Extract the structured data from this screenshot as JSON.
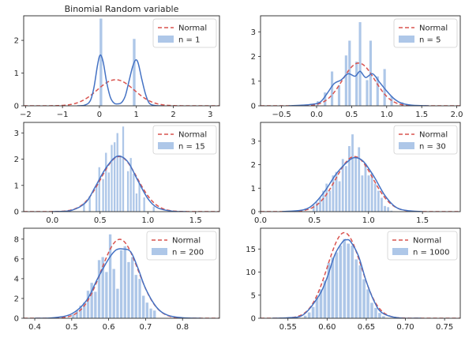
{
  "colors": {
    "hist": "#aec7e8",
    "kde": "#4472c4",
    "normal": "#d9534f",
    "axis": "#262626"
  },
  "chart_data": [
    {
      "type": "bar",
      "title": "Binomial Random variable",
      "legend": {
        "position": "top-right",
        "normal_label": "Normal",
        "hist_label": "n = 1"
      },
      "xlim": [
        -2.05,
        3.25
      ],
      "ylim": [
        0,
        2.75
      ],
      "xticks": [
        -2,
        -1,
        0,
        1,
        2,
        3
      ],
      "yticks": [
        0,
        1,
        2
      ],
      "xticklabels": [
        "−2",
        "−1",
        "0",
        "1",
        "2",
        "3"
      ],
      "yticklabels": [
        "0",
        "1",
        "2"
      ],
      "bins": [
        [
          0.0,
          0.1,
          2.67
        ],
        [
          0.9,
          1.0,
          2.05
        ]
      ],
      "normal": {
        "mu": 0.44,
        "sigma": 0.5
      },
      "kde": [
        [
          -0.6,
          0.0
        ],
        [
          -0.4,
          0.02
        ],
        [
          -0.25,
          0.15
        ],
        [
          -0.15,
          0.55
        ],
        [
          -0.05,
          1.25
        ],
        [
          0.02,
          1.55
        ],
        [
          0.1,
          1.35
        ],
        [
          0.2,
          0.7
        ],
        [
          0.3,
          0.25
        ],
        [
          0.4,
          0.08
        ],
        [
          0.5,
          0.06
        ],
        [
          0.6,
          0.1
        ],
        [
          0.7,
          0.3
        ],
        [
          0.8,
          0.75
        ],
        [
          0.9,
          1.2
        ],
        [
          0.98,
          1.4
        ],
        [
          1.05,
          1.3
        ],
        [
          1.15,
          0.8
        ],
        [
          1.25,
          0.35
        ],
        [
          1.35,
          0.08
        ],
        [
          1.5,
          0.01
        ],
        [
          1.7,
          0.0
        ]
      ]
    },
    {
      "type": "bar",
      "title": "",
      "legend": {
        "position": "top-right",
        "normal_label": "Normal",
        "hist_label": "n = 5"
      },
      "xlim": [
        -0.8,
        2.05
      ],
      "ylim": [
        0,
        3.65
      ],
      "xticks": [
        -0.5,
        0.0,
        0.5,
        1.0,
        1.5,
        2.0
      ],
      "yticks": [
        0,
        1,
        2,
        3
      ],
      "xticklabels": [
        "−0.5",
        "0.0",
        "0.5",
        "1.0",
        "1.5",
        "2.0"
      ],
      "yticklabels": [
        "0",
        "1",
        "2",
        "3"
      ],
      "bins": [
        [
          0.0,
          0.04,
          0.2
        ],
        [
          0.1,
          0.15,
          0.55
        ],
        [
          0.2,
          0.25,
          1.4
        ],
        [
          0.3,
          0.35,
          0.85
        ],
        [
          0.4,
          0.45,
          2.05
        ],
        [
          0.45,
          0.5,
          2.65
        ],
        [
          0.55,
          0.6,
          1.8
        ],
        [
          0.6,
          0.65,
          3.4
        ],
        [
          0.7,
          0.75,
          1.05
        ],
        [
          0.75,
          0.8,
          2.65
        ],
        [
          0.85,
          0.9,
          1.2
        ],
        [
          0.95,
          1.0,
          1.5
        ],
        [
          1.05,
          1.1,
          0.4
        ],
        [
          1.2,
          1.25,
          0.15
        ]
      ],
      "normal": {
        "mu": 0.6,
        "sigma": 0.23
      },
      "kde": [
        [
          -0.4,
          0.0
        ],
        [
          -0.1,
          0.05
        ],
        [
          0.05,
          0.15
        ],
        [
          0.15,
          0.5
        ],
        [
          0.25,
          0.9
        ],
        [
          0.35,
          1.05
        ],
        [
          0.45,
          1.3
        ],
        [
          0.55,
          1.2
        ],
        [
          0.62,
          1.4
        ],
        [
          0.7,
          1.15
        ],
        [
          0.8,
          1.3
        ],
        [
          0.9,
          0.95
        ],
        [
          1.0,
          0.6
        ],
        [
          1.1,
          0.3
        ],
        [
          1.2,
          0.12
        ],
        [
          1.35,
          0.03
        ],
        [
          1.6,
          0.0
        ]
      ]
    },
    {
      "type": "bar",
      "title": "",
      "legend": {
        "position": "top-right",
        "normal_label": "Normal",
        "hist_label": "n = 15"
      },
      "xlim": [
        -0.3,
        1.75
      ],
      "ylim": [
        0,
        3.4
      ],
      "xticks": [
        0.0,
        0.5,
        1.0,
        1.5
      ],
      "yticks": [
        0,
        1,
        2,
        3
      ],
      "xticklabels": [
        "0.0",
        "0.5",
        "1.0",
        "1.5"
      ],
      "yticklabels": [
        "0",
        "1",
        "2",
        "3"
      ],
      "bins": [
        [
          0.32,
          0.35,
          0.35
        ],
        [
          0.38,
          0.41,
          0.6
        ],
        [
          0.45,
          0.48,
          1.0
        ],
        [
          0.48,
          0.51,
          1.7
        ],
        [
          0.52,
          0.55,
          1.25
        ],
        [
          0.55,
          0.58,
          2.25
        ],
        [
          0.58,
          0.61,
          1.5
        ],
        [
          0.61,
          0.64,
          2.55
        ],
        [
          0.64,
          0.67,
          2.65
        ],
        [
          0.67,
          0.7,
          3.0
        ],
        [
          0.7,
          0.73,
          2.15
        ],
        [
          0.73,
          0.76,
          3.25
        ],
        [
          0.78,
          0.81,
          1.55
        ],
        [
          0.81,
          0.84,
          2.05
        ],
        [
          0.84,
          0.87,
          1.45
        ],
        [
          0.87,
          0.9,
          0.7
        ],
        [
          0.9,
          0.93,
          1.1
        ],
        [
          0.95,
          0.98,
          0.55
        ],
        [
          1.05,
          1.08,
          0.2
        ]
      ],
      "normal": {
        "mu": 0.7,
        "sigma": 0.19
      },
      "kde": [
        [
          0.0,
          0.0
        ],
        [
          0.2,
          0.05
        ],
        [
          0.35,
          0.35
        ],
        [
          0.45,
          0.95
        ],
        [
          0.55,
          1.6
        ],
        [
          0.65,
          2.05
        ],
        [
          0.72,
          2.1
        ],
        [
          0.8,
          1.85
        ],
        [
          0.9,
          1.15
        ],
        [
          1.0,
          0.5
        ],
        [
          1.1,
          0.15
        ],
        [
          1.25,
          0.02
        ],
        [
          1.4,
          0.0
        ]
      ]
    },
    {
      "type": "bar",
      "title": "",
      "legend": {
        "position": "top-right",
        "normal_label": "Normal",
        "hist_label": "n = 30"
      },
      "xlim": [
        0.0,
        1.85
      ],
      "ylim": [
        0,
        3.8
      ],
      "xticks": [
        0.0,
        0.5,
        1.0,
        1.5
      ],
      "yticks": [
        0,
        1,
        2,
        3
      ],
      "xticklabels": [
        "0.0",
        "0.5",
        "1.0",
        "1.5"
      ],
      "yticklabels": [
        "0",
        "1",
        "2",
        "3"
      ],
      "bins": [
        [
          0.48,
          0.51,
          0.3
        ],
        [
          0.51,
          0.54,
          0.4
        ],
        [
          0.54,
          0.57,
          0.6
        ],
        [
          0.57,
          0.6,
          0.9
        ],
        [
          0.6,
          0.63,
          1.2
        ],
        [
          0.63,
          0.66,
          0.9
        ],
        [
          0.66,
          0.69,
          1.55
        ],
        [
          0.69,
          0.72,
          1.7
        ],
        [
          0.72,
          0.75,
          1.3
        ],
        [
          0.75,
          0.78,
          2.25
        ],
        [
          0.78,
          0.81,
          1.95
        ],
        [
          0.81,
          0.84,
          2.8
        ],
        [
          0.84,
          0.87,
          3.3
        ],
        [
          0.87,
          0.9,
          2.3
        ],
        [
          0.9,
          0.93,
          2.75
        ],
        [
          0.93,
          0.96,
          1.55
        ],
        [
          0.96,
          0.99,
          2.05
        ],
        [
          0.99,
          1.02,
          1.55
        ],
        [
          1.02,
          1.05,
          1.65
        ],
        [
          1.05,
          1.08,
          1.2
        ],
        [
          1.08,
          1.11,
          0.9
        ],
        [
          1.11,
          1.14,
          0.6
        ],
        [
          1.14,
          1.17,
          0.25
        ],
        [
          1.17,
          1.2,
          0.2
        ],
        [
          1.2,
          1.23,
          0.05
        ]
      ],
      "normal": {
        "mu": 0.87,
        "sigma": 0.17
      },
      "kde": [
        [
          0.2,
          0.0
        ],
        [
          0.4,
          0.08
        ],
        [
          0.5,
          0.35
        ],
        [
          0.6,
          0.9
        ],
        [
          0.7,
          1.6
        ],
        [
          0.8,
          2.1
        ],
        [
          0.87,
          2.3
        ],
        [
          0.95,
          2.15
        ],
        [
          1.05,
          1.5
        ],
        [
          1.15,
          0.7
        ],
        [
          1.25,
          0.2
        ],
        [
          1.35,
          0.05
        ],
        [
          1.5,
          0.0
        ]
      ]
    },
    {
      "type": "bar",
      "title": "",
      "legend": {
        "position": "top-right",
        "normal_label": "Normal",
        "hist_label": "n = 200"
      },
      "xlim": [
        0.37,
        0.9
      ],
      "ylim": [
        0,
        9.1
      ],
      "xticks": [
        0.4,
        0.5,
        0.6,
        0.7,
        0.8
      ],
      "yticks": [
        0,
        2,
        4,
        6,
        8
      ],
      "xticklabels": [
        "0.4",
        "0.5",
        "0.6",
        "0.7",
        "0.8"
      ],
      "yticklabels": [
        "0",
        "2",
        "4",
        "6",
        "8"
      ],
      "bins": [
        [
          0.5,
          0.51,
          0.4
        ],
        [
          0.51,
          0.52,
          0.8
        ],
        [
          0.52,
          0.53,
          1.3
        ],
        [
          0.53,
          0.54,
          1.6
        ],
        [
          0.54,
          0.55,
          2.8
        ],
        [
          0.55,
          0.56,
          3.6
        ],
        [
          0.56,
          0.57,
          2.7
        ],
        [
          0.57,
          0.58,
          5.9
        ],
        [
          0.58,
          0.59,
          6.2
        ],
        [
          0.59,
          0.6,
          4.7
        ],
        [
          0.6,
          0.61,
          8.5
        ],
        [
          0.61,
          0.62,
          5.0
        ],
        [
          0.62,
          0.63,
          3.0
        ],
        [
          0.63,
          0.64,
          6.9
        ],
        [
          0.64,
          0.65,
          7.3
        ],
        [
          0.65,
          0.66,
          5.7
        ],
        [
          0.66,
          0.67,
          6.2
        ],
        [
          0.67,
          0.68,
          4.4
        ],
        [
          0.68,
          0.69,
          4.0
        ],
        [
          0.69,
          0.7,
          2.3
        ],
        [
          0.7,
          0.71,
          1.6
        ],
        [
          0.71,
          0.72,
          1.0
        ],
        [
          0.72,
          0.73,
          0.8
        ]
      ],
      "normal": {
        "mu": 0.63,
        "sigma": 0.05
      },
      "kde": [
        [
          0.4,
          0.0
        ],
        [
          0.45,
          0.05
        ],
        [
          0.5,
          0.45
        ],
        [
          0.54,
          1.8
        ],
        [
          0.57,
          4.0
        ],
        [
          0.6,
          6.0
        ],
        [
          0.62,
          6.9
        ],
        [
          0.64,
          7.0
        ],
        [
          0.66,
          6.7
        ],
        [
          0.68,
          5.0
        ],
        [
          0.7,
          3.0
        ],
        [
          0.73,
          1.1
        ],
        [
          0.76,
          0.3
        ],
        [
          0.8,
          0.05
        ],
        [
          0.85,
          0.0
        ]
      ]
    },
    {
      "type": "bar",
      "title": "",
      "legend": {
        "position": "top-right",
        "normal_label": "Normal",
        "hist_label": "n = 1000"
      },
      "xlim": [
        0.515,
        0.77
      ],
      "ylim": [
        0,
        19.5
      ],
      "xticks": [
        0.55,
        0.6,
        0.65,
        0.7,
        0.75
      ],
      "yticks": [
        0,
        5,
        10,
        15
      ],
      "xticklabels": [
        "0.55",
        "0.60",
        "0.65",
        "0.70",
        "0.75"
      ],
      "yticklabels": [
        "0",
        "5",
        "10",
        "15"
      ],
      "bins": [
        [
          0.57,
          0.575,
          0.6
        ],
        [
          0.575,
          0.58,
          1.3
        ],
        [
          0.58,
          0.585,
          2.5
        ],
        [
          0.585,
          0.59,
          4.6
        ],
        [
          0.59,
          0.595,
          6.3
        ],
        [
          0.595,
          0.6,
          8.2
        ],
        [
          0.6,
          0.605,
          12.0
        ],
        [
          0.605,
          0.61,
          13.2
        ],
        [
          0.61,
          0.615,
          14.3
        ],
        [
          0.615,
          0.62,
          15.8
        ],
        [
          0.62,
          0.625,
          17.2
        ],
        [
          0.625,
          0.63,
          16.2
        ],
        [
          0.63,
          0.635,
          15.8
        ],
        [
          0.635,
          0.64,
          12.8
        ],
        [
          0.64,
          0.645,
          11.5
        ],
        [
          0.645,
          0.65,
          8.5
        ],
        [
          0.65,
          0.655,
          6.3
        ],
        [
          0.655,
          0.66,
          3.4
        ],
        [
          0.66,
          0.665,
          2.3
        ],
        [
          0.665,
          0.67,
          1.2
        ],
        [
          0.67,
          0.675,
          0.5
        ]
      ],
      "normal": {
        "mu": 0.622,
        "sigma": 0.0215
      },
      "kde": [
        [
          0.53,
          0.0
        ],
        [
          0.55,
          0.1
        ],
        [
          0.57,
          0.8
        ],
        [
          0.59,
          5.0
        ],
        [
          0.6,
          8.8
        ],
        [
          0.61,
          13.8
        ],
        [
          0.62,
          16.6
        ],
        [
          0.625,
          17.0
        ],
        [
          0.63,
          16.6
        ],
        [
          0.64,
          13.5
        ],
        [
          0.65,
          8.0
        ],
        [
          0.66,
          3.7
        ],
        [
          0.67,
          1.2
        ],
        [
          0.69,
          0.1
        ],
        [
          0.72,
          0.0
        ]
      ]
    }
  ]
}
